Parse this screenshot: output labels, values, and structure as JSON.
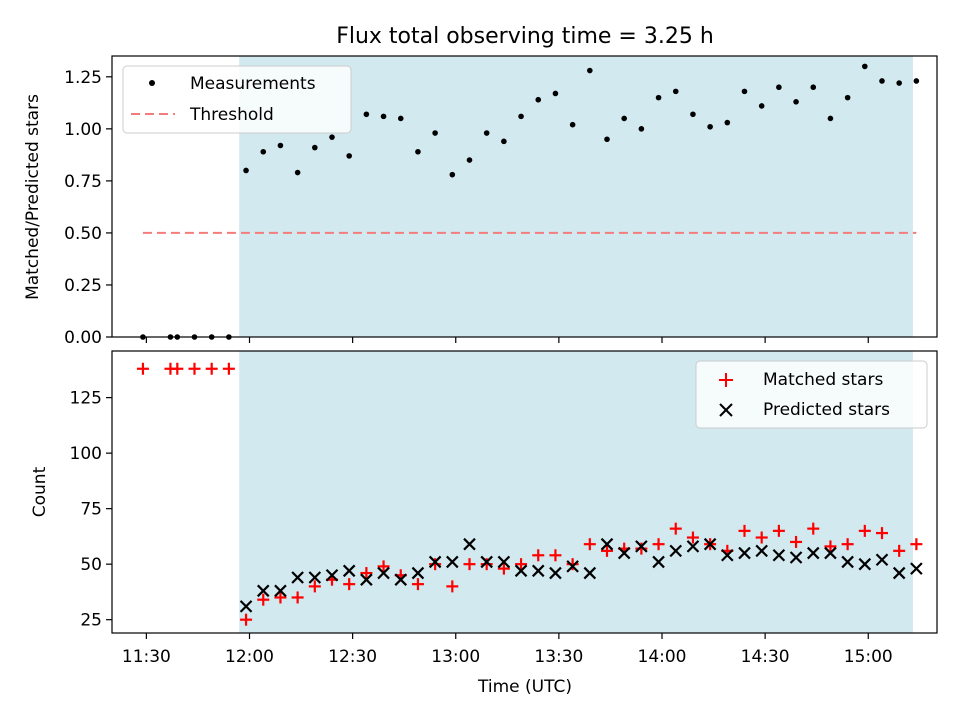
{
  "chart_data": {
    "type": "scatter",
    "title": "Flux total observing time = 3.25 h",
    "xlabel": "Time (UTC)",
    "x_unit": "time of day (UTC)",
    "x_range": [
      "11:20",
      "15:20"
    ],
    "x_tick_labels": [
      "11:30",
      "12:00",
      "12:30",
      "13:00",
      "13:30",
      "14:00",
      "14:30",
      "15:00"
    ],
    "shaded_interval": {
      "start": "11:57",
      "end": "15:13",
      "color": "#d2e9f0"
    },
    "panels": [
      {
        "id": "ratio",
        "ylabel": "Matched/Predicted stars",
        "ylim": [
          0,
          1.35
        ],
        "y_tick_labels": [
          "0.00",
          "0.25",
          "0.50",
          "0.75",
          "1.00",
          "1.25"
        ],
        "y_ticks": [
          0,
          0.25,
          0.5,
          0.75,
          1.0,
          1.25
        ],
        "legend": {
          "location": "upper-left"
        },
        "series": [
          {
            "name": "Measurements",
            "marker": "dot",
            "color": "#000000",
            "x": [
              "11:29",
              "11:37",
              "11:39",
              "11:44",
              "11:49",
              "11:54",
              "11:59",
              "12:04",
              "12:09",
              "12:14",
              "12:19",
              "12:24",
              "12:29",
              "12:34",
              "12:39",
              "12:44",
              "12:49",
              "12:54",
              "12:59",
              "13:04",
              "13:09",
              "13:14",
              "13:19",
              "13:24",
              "13:29",
              "13:34",
              "13:39",
              "13:44",
              "13:49",
              "13:54",
              "13:59",
              "14:04",
              "14:09",
              "14:14",
              "14:19",
              "14:24",
              "14:29",
              "14:34",
              "14:39",
              "14:44",
              "14:49",
              "14:54",
              "14:59",
              "15:04",
              "15:09",
              "15:14"
            ],
            "y": [
              0,
              0,
              0,
              0,
              0,
              0,
              0.8,
              0.89,
              0.92,
              0.79,
              0.91,
              0.96,
              0.87,
              1.07,
              1.06,
              1.05,
              0.89,
              0.98,
              0.78,
              0.85,
              0.98,
              0.94,
              1.06,
              1.14,
              1.17,
              1.02,
              1.28,
              0.95,
              1.05,
              1.0,
              1.15,
              1.18,
              1.07,
              1.01,
              1.03,
              1.18,
              1.11,
              1.2,
              1.13,
              1.2,
              1.05,
              1.15,
              1.3,
              1.23,
              1.22,
              1.23
            ]
          },
          {
            "name": "Threshold",
            "marker": "dashed-line",
            "color": "#f47c7c",
            "x": [
              "11:29",
              "15:14"
            ],
            "y": [
              0.5,
              0.5
            ]
          }
        ]
      },
      {
        "id": "count",
        "ylabel": "Count",
        "ylim": [
          19,
          146
        ],
        "y_tick_labels": [
          "25",
          "50",
          "75",
          "100",
          "125"
        ],
        "y_ticks": [
          25,
          50,
          75,
          100,
          125
        ],
        "legend": {
          "location": "upper-right"
        },
        "series": [
          {
            "name": "Matched stars",
            "marker": "plus",
            "color": "#ff0000",
            "x": [
              "11:29",
              "11:37",
              "11:39",
              "11:44",
              "11:49",
              "11:54",
              "11:59",
              "12:04",
              "12:09",
              "12:14",
              "12:19",
              "12:24",
              "12:29",
              "12:34",
              "12:39",
              "12:44",
              "12:49",
              "12:54",
              "12:59",
              "13:04",
              "13:09",
              "13:14",
              "13:19",
              "13:24",
              "13:29",
              "13:34",
              "13:39",
              "13:44",
              "13:49",
              "13:54",
              "13:59",
              "14:04",
              "14:09",
              "14:14",
              "14:19",
              "14:24",
              "14:29",
              "14:34",
              "14:39",
              "14:44",
              "14:49",
              "14:54",
              "14:59",
              "15:04",
              "15:09",
              "15:14"
            ],
            "y": [
              138,
              138,
              138,
              138,
              138,
              138,
              25,
              34,
              35,
              35,
              40,
              43,
              41,
              46,
              49,
              45,
              41,
              50,
              40,
              50,
              50,
              48,
              50,
              54,
              54,
              50,
              59,
              56,
              57,
              57,
              59,
              66,
              62,
              59,
              56,
              65,
              62,
              65,
              60,
              66,
              58,
              59,
              65,
              64,
              56,
              59
            ]
          },
          {
            "name": "Predicted stars",
            "marker": "x",
            "color": "#000000",
            "x": [
              "11:59",
              "12:04",
              "12:09",
              "12:14",
              "12:19",
              "12:24",
              "12:29",
              "12:34",
              "12:39",
              "12:44",
              "12:49",
              "12:54",
              "12:59",
              "13:04",
              "13:09",
              "13:14",
              "13:19",
              "13:24",
              "13:29",
              "13:34",
              "13:39",
              "13:44",
              "13:49",
              "13:54",
              "13:59",
              "14:04",
              "14:09",
              "14:14",
              "14:19",
              "14:24",
              "14:29",
              "14:34",
              "14:39",
              "14:44",
              "14:49",
              "14:54",
              "14:59",
              "15:04",
              "15:09",
              "15:14"
            ],
            "y": [
              31,
              38,
              38,
              44,
              44,
              45,
              47,
              43,
              46,
              43,
              46,
              51,
              51,
              59,
              51,
              51,
              47,
              47,
              46,
              49,
              46,
              59,
              55,
              58,
              51,
              56,
              58,
              59,
              54,
              55,
              56,
              54,
              53,
              55,
              55,
              51,
              50,
              52,
              46,
              48
            ]
          }
        ]
      }
    ]
  }
}
